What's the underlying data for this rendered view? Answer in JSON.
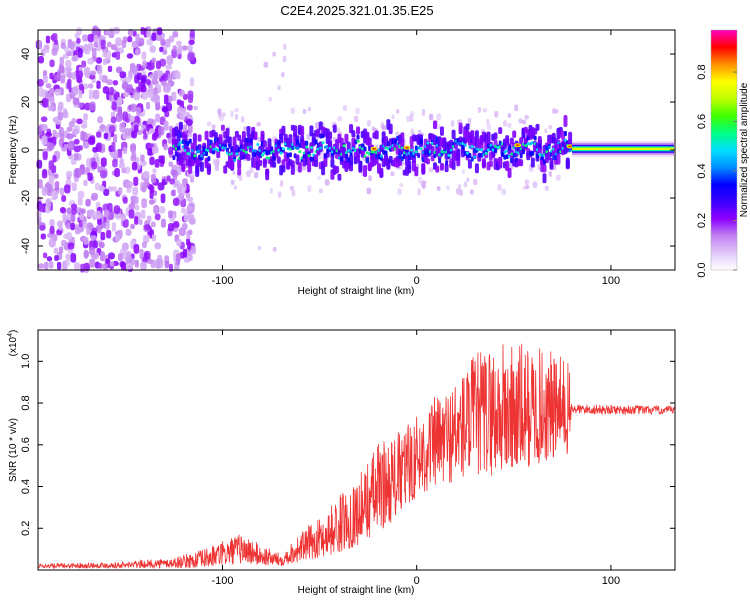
{
  "title": "C2E4.2025.321.01.35.E25",
  "chart_data": [
    {
      "type": "heatmap",
      "name": "spectrogram",
      "xlabel": "Height of straight line (km)",
      "ylabel": "Frequency (Hz)",
      "xlim": [
        -195,
        133
      ],
      "ylim": [
        -50,
        50
      ],
      "xticks": [
        -100,
        0,
        100
      ],
      "yticks": [
        -40,
        -20,
        0,
        20,
        40
      ],
      "colorbar": {
        "label": "Normalized spectral amplitude",
        "range": [
          0,
          0.97
        ],
        "ticks": [
          0.0,
          0.2,
          0.4,
          0.6,
          0.8
        ],
        "colormap": [
          "#ffffff",
          "#e0c8f8",
          "#c080f0",
          "#8c00ff",
          "#3a00ff",
          "#0000ff",
          "#0090ff",
          "#00e0ff",
          "#00ff80",
          "#40ff00",
          "#c0ff00",
          "#ffff00",
          "#ff9000",
          "#ff0000",
          "#ff00c0"
        ]
      },
      "features": {
        "noise_region_x": [
          -195,
          -125
        ],
        "band_region_x": [
          -125,
          80
        ],
        "band_center_hz": 0,
        "band_halfwidth_hz": 8,
        "steady_tone_x": [
          80,
          133
        ],
        "steady_tone_hz": 0.5
      }
    },
    {
      "type": "line",
      "name": "snr",
      "color": "#ee3333",
      "xlabel": "Height of straight line (km)",
      "ylabel": "SNR (10 * v/v)",
      "scale_note": "(x10",
      "scale_exponent": "4",
      "xlim": [
        -195,
        133
      ],
      "ylim": [
        0,
        1.15
      ],
      "xticks": [
        -100,
        0,
        100
      ],
      "yticks": [
        0.2,
        0.4,
        0.6,
        0.8,
        1.0
      ],
      "envelope": {
        "x": [
          -195,
          -150,
          -125,
          -110,
          -100,
          -90,
          -80,
          -70,
          -60,
          -50,
          -40,
          -30,
          -20,
          -10,
          0,
          10,
          20,
          30,
          40,
          50,
          60,
          70,
          78,
          80,
          133
        ],
        "y_min": [
          0.01,
          0.01,
          0.01,
          0.01,
          0.02,
          0.03,
          0.02,
          0.02,
          0.04,
          0.06,
          0.08,
          0.12,
          0.18,
          0.25,
          0.35,
          0.4,
          0.42,
          0.45,
          0.45,
          0.45,
          0.5,
          0.52,
          0.55,
          0.74,
          0.74
        ],
        "y_max": [
          0.03,
          0.04,
          0.06,
          0.1,
          0.14,
          0.18,
          0.12,
          0.08,
          0.18,
          0.25,
          0.36,
          0.45,
          0.62,
          0.66,
          0.75,
          0.84,
          0.92,
          1.05,
          1.1,
          1.1,
          1.08,
          1.05,
          1.02,
          0.8,
          0.79
        ]
      }
    }
  ]
}
